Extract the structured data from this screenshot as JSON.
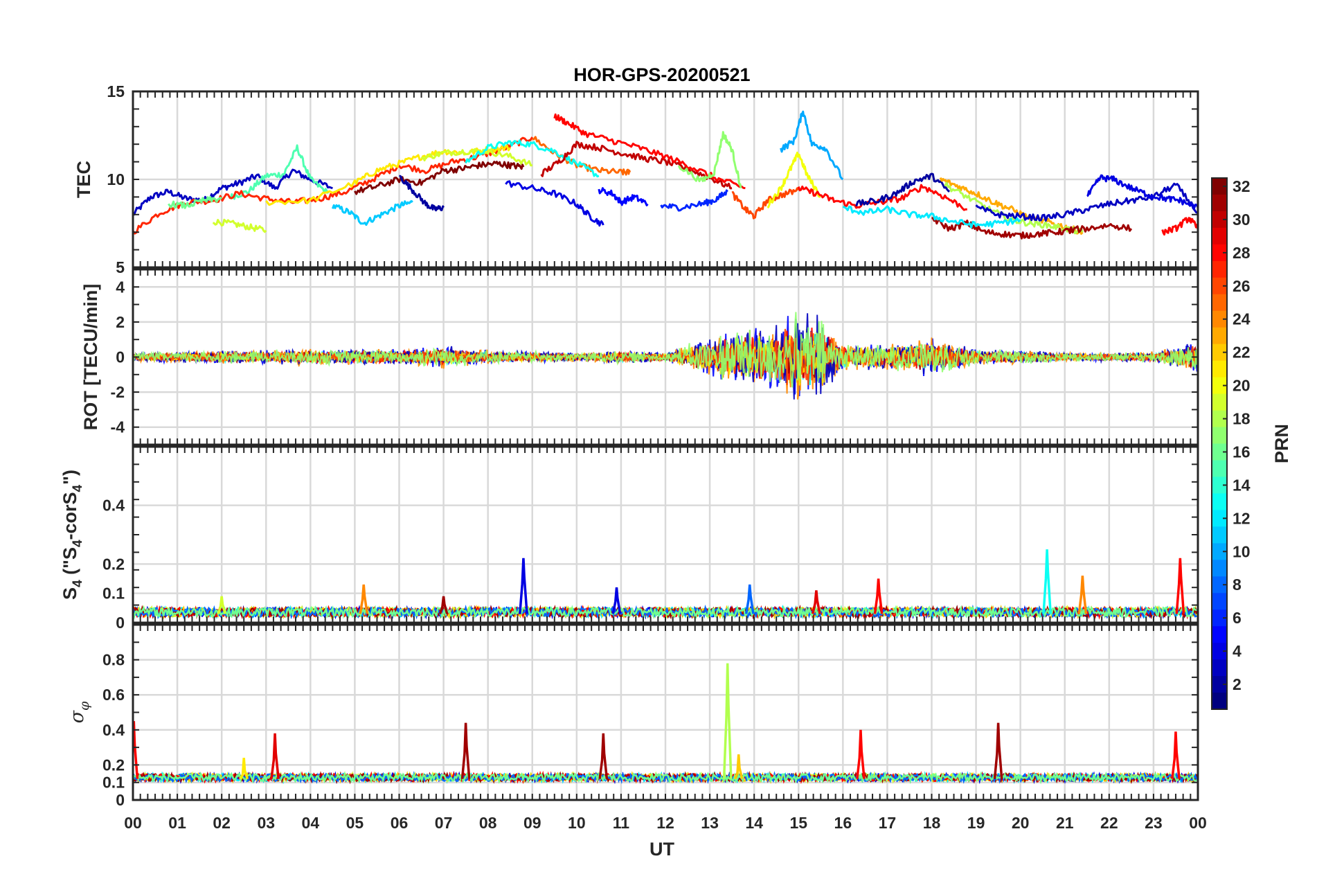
{
  "chart_data": [
    {
      "type": "line",
      "title": "HOR-GPS-20200521",
      "ylabel": "TEC",
      "xlabel": "",
      "ylim": [
        5,
        15
      ],
      "yticks": [
        5,
        10,
        15
      ],
      "xlim": [
        0,
        24
      ],
      "grid": true,
      "series": [
        {
          "color_index": 3,
          "x": [
            0.0,
            0.4,
            0.8,
            1.2,
            1.6,
            2.0,
            2.4,
            2.8,
            3.2,
            3.6,
            4.0,
            4.5
          ],
          "y": [
            8.0,
            9.0,
            9.3,
            8.9,
            8.8,
            9.5,
            9.8,
            10.2,
            9.5,
            10.5,
            10.0,
            9.5
          ]
        },
        {
          "color_index": 15,
          "x": [
            2.2,
            2.6,
            3.0,
            3.4,
            3.7,
            4.0,
            4.4
          ],
          "y": [
            9.0,
            9.3,
            10.2,
            10.3,
            11.8,
            10.0,
            9.2
          ]
        },
        {
          "color_index": 11,
          "x": [
            4.5,
            4.9,
            5.2,
            5.6,
            6.0,
            6.3
          ],
          "y": [
            8.5,
            8.1,
            7.5,
            8.0,
            8.5,
            8.7
          ]
        },
        {
          "color_index": 19,
          "x": [
            1.8,
            2.2,
            2.6,
            3.0
          ],
          "y": [
            7.6,
            7.5,
            7.3,
            7.1
          ]
        },
        {
          "color_index": 27,
          "x": [
            0.0,
            0.6,
            1.2,
            1.8,
            2.4,
            3.0,
            3.6,
            4.2,
            4.8,
            5.4,
            6.0,
            6.6,
            7.2,
            7.8,
            8.4,
            9.0
          ],
          "y": [
            7.0,
            8.1,
            8.7,
            8.8,
            9.2,
            8.9,
            8.7,
            8.9,
            9.3,
            10.0,
            10.8,
            10.5,
            11.0,
            11.3,
            11.8,
            12.4
          ]
        },
        {
          "color_index": 25,
          "x": [
            9.0,
            9.5,
            10.0,
            10.5,
            11.0,
            11.2
          ],
          "y": [
            12.4,
            11.5,
            10.8,
            10.5,
            10.4,
            10.4
          ]
        },
        {
          "color_index": 21,
          "x": [
            3.0,
            4.0,
            5.0,
            5.5,
            6.0,
            6.5,
            7.0,
            7.5,
            8.0,
            8.5
          ],
          "y": [
            8.7,
            8.8,
            9.8,
            10.5,
            10.9,
            11.3,
            11.6,
            11.5,
            11.7,
            11.8
          ]
        },
        {
          "color_index": 19,
          "x": [
            6.5,
            7.0,
            7.5,
            8.0,
            8.5,
            9.0
          ],
          "y": [
            11.2,
            11.5,
            11.6,
            11.6,
            11.3,
            10.8
          ]
        },
        {
          "color_index": 13,
          "x": [
            7.5,
            8.0,
            8.5,
            9.0,
            9.5,
            10.0,
            10.5
          ],
          "y": [
            11.0,
            11.8,
            12.1,
            12.0,
            11.6,
            10.9,
            10.2
          ]
        },
        {
          "color_index": 32,
          "x": [
            5.0,
            5.5,
            6.0,
            6.5,
            7.0,
            7.4,
            7.8,
            8.2,
            8.5,
            8.8
          ],
          "y": [
            9.3,
            9.6,
            10.0,
            9.8,
            10.5,
            10.6,
            10.8,
            10.9,
            10.8,
            10.7
          ]
        },
        {
          "color_index": 2,
          "x": [
            6.0,
            6.3,
            6.6,
            6.8,
            7.0
          ],
          "y": [
            10.2,
            9.4,
            8.6,
            8.3,
            8.4
          ]
        },
        {
          "color_index": 4,
          "x": [
            8.4,
            9.0,
            9.5,
            10.0,
            10.3,
            10.6
          ],
          "y": [
            9.8,
            9.5,
            9.2,
            8.6,
            7.9,
            7.4
          ]
        },
        {
          "color_index": 5,
          "x": [
            10.5,
            10.8,
            11.0,
            11.3,
            11.6
          ],
          "y": [
            9.4,
            9.2,
            8.7,
            9.0,
            8.6
          ]
        },
        {
          "color_index": 30,
          "x": [
            9.2,
            9.6,
            10.0,
            10.5,
            11.0,
            11.5,
            12.0,
            12.5,
            13.0,
            13.5
          ],
          "y": [
            10.3,
            11.0,
            12.0,
            11.8,
            11.5,
            11.2,
            11.0,
            10.6,
            10.1,
            9.5
          ]
        },
        {
          "color_index": 28,
          "x": [
            9.5,
            9.8,
            10.2,
            10.8,
            11.4,
            12.0,
            12.6,
            13.2,
            13.8
          ],
          "y": [
            13.6,
            13.2,
            12.6,
            12.2,
            11.8,
            11.3,
            10.7,
            10.0,
            9.5
          ]
        },
        {
          "color_index": 6,
          "x": [
            11.9,
            12.3,
            12.8,
            13.1,
            13.4
          ],
          "y": [
            8.5,
            8.4,
            8.6,
            8.8,
            9.3
          ]
        },
        {
          "color_index": 17,
          "x": [
            12.3,
            12.8,
            13.1,
            13.3,
            13.5,
            13.7
          ],
          "y": [
            10.8,
            9.9,
            10.4,
            12.6,
            11.7,
            9.5
          ]
        },
        {
          "color_index": 26,
          "x": [
            13.5,
            13.8,
            14.0,
            14.3,
            14.6,
            15.0
          ],
          "y": [
            9.2,
            8.3,
            7.9,
            8.8,
            9.1,
            9.4
          ]
        },
        {
          "color_index": 20,
          "x": [
            14.3,
            14.6,
            14.8,
            15.0,
            15.2,
            15.5
          ],
          "y": [
            8.5,
            9.5,
            10.5,
            11.5,
            10.2,
            9.0
          ]
        },
        {
          "color_index": 10,
          "x": [
            14.6,
            14.9,
            15.1,
            15.3,
            15.6,
            16.0
          ],
          "y": [
            11.7,
            12.2,
            13.9,
            12.0,
            11.8,
            10.0
          ]
        },
        {
          "color_index": 28,
          "x": [
            15.0,
            15.4,
            15.8,
            16.3,
            16.8,
            17.3,
            17.8,
            18.3,
            18.8
          ],
          "y": [
            9.5,
            9.2,
            8.8,
            8.5,
            8.7,
            8.9,
            9.6,
            9.0,
            8.3
          ]
        },
        {
          "color_index": 2,
          "x": [
            16.3,
            16.8,
            17.2,
            17.6,
            18.0,
            18.4
          ],
          "y": [
            8.6,
            8.8,
            9.2,
            9.9,
            10.2,
            9.3
          ]
        },
        {
          "color_index": 23,
          "x": [
            18.2,
            18.6,
            19.0,
            19.4,
            19.8,
            20.2,
            20.6,
            21.0,
            21.4
          ],
          "y": [
            10.0,
            9.6,
            9.2,
            8.7,
            8.3,
            7.8,
            7.6,
            7.3,
            7.0
          ]
        },
        {
          "color_index": 18,
          "x": [
            18.3,
            18.8,
            19.3,
            19.8,
            20.2,
            20.6,
            21.0,
            21.4
          ],
          "y": [
            9.7,
            9.0,
            8.3,
            7.7,
            7.5,
            7.4,
            7.2,
            7.0
          ]
        },
        {
          "color_index": 31,
          "x": [
            18.0,
            18.4,
            18.8,
            19.2,
            19.6,
            20.0,
            20.4,
            20.8,
            21.2
          ],
          "y": [
            7.8,
            7.2,
            7.5,
            7.0,
            6.9,
            6.8,
            6.9,
            7.0,
            7.1
          ]
        },
        {
          "color_index": 3,
          "x": [
            19.0,
            19.5,
            20.0,
            20.5,
            21.0,
            21.5,
            22.0,
            22.5,
            23.0,
            23.5,
            24.0
          ],
          "y": [
            8.4,
            8.0,
            7.9,
            7.8,
            8.0,
            8.3,
            8.6,
            8.8,
            9.0,
            9.7,
            8.1
          ]
        },
        {
          "color_index": 4,
          "x": [
            21.5,
            21.8,
            22.1,
            22.5,
            22.9,
            23.3,
            23.6,
            24.0
          ],
          "y": [
            9.0,
            10.1,
            10.0,
            9.5,
            9.1,
            8.9,
            8.8,
            8.4
          ]
        },
        {
          "color_index": 12,
          "x": [
            16.0,
            16.5,
            17.0,
            17.5,
            18.0,
            18.5,
            19.0,
            19.5,
            20.0
          ],
          "y": [
            8.4,
            8.1,
            8.3,
            8.0,
            7.9,
            7.6,
            7.4,
            7.5,
            7.7
          ]
        },
        {
          "color_index": 31,
          "x": [
            21.0,
            21.5,
            22.0,
            22.5
          ],
          "y": [
            7.1,
            7.2,
            7.4,
            7.2
          ]
        },
        {
          "color_index": 28,
          "x": [
            23.2,
            23.5,
            23.8,
            24.0
          ],
          "y": [
            7.0,
            7.2,
            7.8,
            7.2
          ]
        },
        {
          "color_index": 16,
          "x": [
            0.8,
            1.2,
            1.6,
            2.0
          ],
          "y": [
            8.6,
            8.5,
            8.8,
            8.9
          ]
        }
      ]
    },
    {
      "type": "line",
      "ylabel": "ROT [TECU/min]",
      "ylim": [
        -5,
        5
      ],
      "yticks": [
        -4,
        -2,
        0,
        2,
        4
      ],
      "xlim": [
        0,
        24
      ],
      "grid": true,
      "noise_envelope": {
        "x": [
          0,
          1,
          2,
          3,
          4,
          5,
          6,
          7,
          8,
          9,
          10,
          11,
          12,
          13,
          13.5,
          14,
          14.5,
          15,
          15.5,
          16,
          17,
          18,
          19,
          20,
          21,
          22,
          23,
          24
        ],
        "amplitude": [
          0.3,
          0.4,
          0.5,
          0.5,
          0.6,
          0.6,
          0.6,
          0.8,
          0.5,
          0.4,
          0.3,
          0.5,
          0.3,
          1.5,
          2.0,
          2.2,
          2.5,
          3.3,
          2.8,
          1.0,
          1.0,
          1.4,
          0.6,
          0.5,
          0.3,
          0.3,
          0.4,
          1.2
        ]
      }
    },
    {
      "type": "line",
      "ylabel": "S4 (\"S4-corS4\")",
      "ylim": [
        0,
        0.6
      ],
      "yticks": [
        0,
        0.1,
        0.2,
        0.4
      ],
      "xlim": [
        0,
        24
      ],
      "grid": true,
      "peaks": [
        {
          "x": 8.8,
          "y": 0.22,
          "color_index": 4
        },
        {
          "x": 5.2,
          "y": 0.13,
          "color_index": 24
        },
        {
          "x": 7.0,
          "y": 0.09,
          "color_index": 31
        },
        {
          "x": 10.9,
          "y": 0.12,
          "color_index": 4
        },
        {
          "x": 13.9,
          "y": 0.13,
          "color_index": 8
        },
        {
          "x": 15.4,
          "y": 0.11,
          "color_index": 29
        },
        {
          "x": 16.8,
          "y": 0.15,
          "color_index": 28
        },
        {
          "x": 20.6,
          "y": 0.25,
          "color_index": 13
        },
        {
          "x": 21.4,
          "y": 0.16,
          "color_index": 24
        },
        {
          "x": 23.6,
          "y": 0.22,
          "color_index": 28
        },
        {
          "x": 2.0,
          "y": 0.09,
          "color_index": 19
        }
      ]
    },
    {
      "type": "line",
      "ylabel": "σφ",
      "ylim": [
        0,
        1
      ],
      "yticks": [
        0,
        0.1,
        0.2,
        0.4,
        0.6,
        0.8
      ],
      "xlim": [
        0,
        24
      ],
      "xticks": [
        "00",
        "01",
        "02",
        "03",
        "04",
        "05",
        "06",
        "07",
        "08",
        "09",
        "10",
        "11",
        "12",
        "13",
        "14",
        "15",
        "16",
        "17",
        "18",
        "19",
        "20",
        "21",
        "22",
        "23",
        "00"
      ],
      "xlabel": "UT",
      "grid": true,
      "peaks": [
        {
          "x": 0.02,
          "y": 0.45,
          "color_index": 28
        },
        {
          "x": 3.2,
          "y": 0.38,
          "color_index": 29
        },
        {
          "x": 7.5,
          "y": 0.44,
          "color_index": 31
        },
        {
          "x": 10.6,
          "y": 0.38,
          "color_index": 31
        },
        {
          "x": 13.4,
          "y": 0.78,
          "color_index": 18
        },
        {
          "x": 13.65,
          "y": 0.26,
          "color_index": 22
        },
        {
          "x": 16.4,
          "y": 0.4,
          "color_index": 28
        },
        {
          "x": 19.5,
          "y": 0.44,
          "color_index": 31
        },
        {
          "x": 23.5,
          "y": 0.39,
          "color_index": 28
        },
        {
          "x": 2.5,
          "y": 0.24,
          "color_index": 21
        }
      ]
    }
  ],
  "colorbar": {
    "label": "PRN",
    "min": 1,
    "max": 32,
    "ticks": [
      2,
      4,
      6,
      8,
      10,
      12,
      14,
      16,
      18,
      20,
      22,
      24,
      26,
      28,
      30,
      32
    ],
    "colormap": "jet"
  }
}
